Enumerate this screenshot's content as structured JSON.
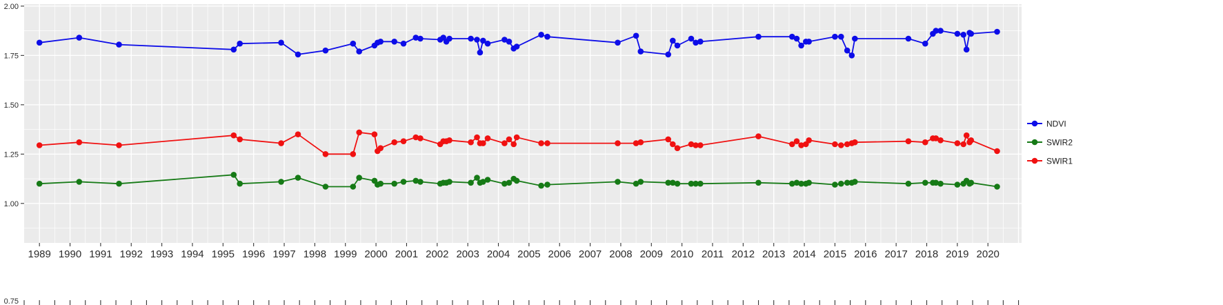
{
  "figure": {
    "title": "",
    "kind": "ggplot-style time series of spectral indices"
  },
  "chart_data": {
    "type": "line",
    "title": "",
    "xlabel": "",
    "ylabel": "",
    "legend_position": "right",
    "grid": true,
    "style": {
      "panel_bg": "#EBEBEB",
      "grid_major_color": "#FFFFFF",
      "grid_minor_color": "#FFFFFF",
      "axis_text_color": "#2b2b2b",
      "tick_color": "#333333"
    },
    "axis_ranges": {
      "x": [
        1988.5,
        2021.1
      ],
      "y_visible": [
        0.8,
        2.01
      ]
    },
    "x_ticks": [
      1989,
      1990,
      1991,
      1992,
      1993,
      1994,
      1995,
      1996,
      1997,
      1998,
      1999,
      2000,
      2001,
      2002,
      2003,
      2004,
      2005,
      2006,
      2007,
      2008,
      2009,
      2010,
      2011,
      2012,
      2013,
      2014,
      2015,
      2016,
      2017,
      2018,
      2019,
      2020
    ],
    "x_grid_extra": [
      2021
    ],
    "y_ticks": {
      "values": [
        2.0,
        1.75,
        1.5,
        1.25,
        1.0
      ],
      "labels": [
        "2.00",
        "1.75",
        "1.50",
        "1.25",
        "1.00"
      ]
    },
    "y_minor": [
      1.875,
      1.625,
      1.375,
      1.125,
      0.875
    ],
    "bottom_sliver_label": "0.75",
    "x": [
      1989.0,
      1990.3,
      1991.6,
      1995.35,
      1995.55,
      1996.9,
      1997.45,
      1998.35,
      1999.25,
      1999.45,
      1999.95,
      2000.05,
      2000.15,
      2000.6,
      2000.9,
      2001.3,
      2001.45,
      2002.1,
      2002.2,
      2002.3,
      2002.4,
      2003.1,
      2003.3,
      2003.4,
      2003.5,
      2003.65,
      2004.2,
      2004.35,
      2004.5,
      2004.6,
      2005.4,
      2005.6,
      2007.9,
      2008.5,
      2008.65,
      2009.55,
      2009.7,
      2009.85,
      2010.3,
      2010.45,
      2010.6,
      2012.5,
      2013.6,
      2013.75,
      2013.9,
      2014.05,
      2014.15,
      2015.0,
      2015.2,
      2015.4,
      2015.55,
      2015.65,
      2017.4,
      2017.95,
      2018.2,
      2018.3,
      2018.45,
      2019.0,
      2019.2,
      2019.3,
      2019.4,
      2019.45,
      2020.3
    ],
    "series": [
      {
        "name": "NDVI",
        "color": "#0D0DE8",
        "values": [
          1.815,
          1.84,
          1.805,
          1.78,
          1.81,
          1.815,
          1.755,
          1.775,
          1.81,
          1.77,
          1.8,
          1.815,
          1.82,
          1.82,
          1.81,
          1.84,
          1.835,
          1.83,
          1.84,
          1.82,
          1.835,
          1.835,
          1.83,
          1.765,
          1.825,
          1.81,
          1.83,
          1.82,
          1.785,
          1.795,
          1.855,
          1.845,
          1.815,
          1.85,
          1.77,
          1.755,
          1.825,
          1.8,
          1.835,
          1.815,
          1.82,
          1.845,
          1.845,
          1.835,
          1.8,
          1.82,
          1.82,
          1.845,
          1.845,
          1.775,
          1.75,
          1.835,
          1.835,
          1.81,
          1.86,
          1.875,
          1.875,
          1.86,
          1.855,
          1.78,
          1.865,
          1.86,
          1.87
        ]
      },
      {
        "name": "SWIR2",
        "color": "#167A16",
        "values": [
          1.1,
          1.11,
          1.1,
          1.145,
          1.1,
          1.11,
          1.13,
          1.085,
          1.085,
          1.13,
          1.115,
          1.095,
          1.1,
          1.1,
          1.11,
          1.115,
          1.11,
          1.1,
          1.105,
          1.105,
          1.11,
          1.105,
          1.13,
          1.105,
          1.11,
          1.12,
          1.1,
          1.105,
          1.125,
          1.115,
          1.09,
          1.095,
          1.11,
          1.1,
          1.11,
          1.105,
          1.105,
          1.1,
          1.1,
          1.1,
          1.1,
          1.105,
          1.1,
          1.105,
          1.1,
          1.1,
          1.105,
          1.095,
          1.1,
          1.105,
          1.105,
          1.11,
          1.1,
          1.105,
          1.105,
          1.105,
          1.1,
          1.095,
          1.1,
          1.115,
          1.1,
          1.105,
          1.085
        ]
      },
      {
        "name": "SWIR1",
        "color": "#F01111",
        "values": [
          1.295,
          1.31,
          1.295,
          1.345,
          1.325,
          1.305,
          1.35,
          1.25,
          1.25,
          1.36,
          1.35,
          1.265,
          1.28,
          1.31,
          1.315,
          1.335,
          1.33,
          1.3,
          1.315,
          1.315,
          1.32,
          1.31,
          1.335,
          1.305,
          1.305,
          1.33,
          1.305,
          1.325,
          1.3,
          1.335,
          1.305,
          1.305,
          1.305,
          1.305,
          1.31,
          1.325,
          1.3,
          1.28,
          1.3,
          1.295,
          1.295,
          1.34,
          1.3,
          1.315,
          1.295,
          1.3,
          1.32,
          1.3,
          1.295,
          1.3,
          1.305,
          1.31,
          1.315,
          1.31,
          1.33,
          1.33,
          1.32,
          1.305,
          1.3,
          1.345,
          1.31,
          1.32,
          1.265
        ]
      }
    ],
    "legend": {
      "items": [
        "NDVI",
        "SWIR2",
        "SWIR1"
      ]
    }
  }
}
